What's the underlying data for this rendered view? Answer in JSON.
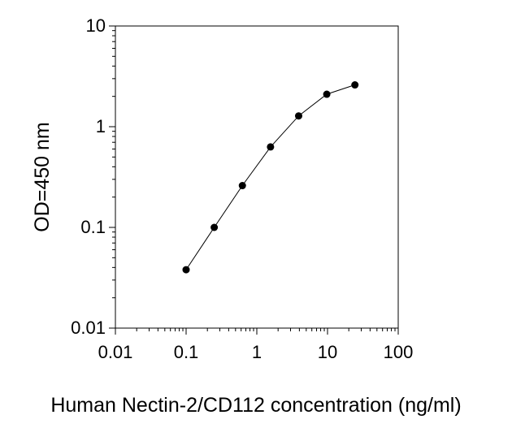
{
  "chart_data": {
    "type": "line",
    "title": "",
    "xlabel": "Human Nectin-2/CD112 concentration (ng/ml)",
    "ylabel": "OD=450 nm",
    "xscale": "log",
    "yscale": "log",
    "xlim": [
      0.01,
      100
    ],
    "ylim": [
      0.01,
      10
    ],
    "x_ticks": [
      0.01,
      0.1,
      1,
      10,
      100
    ],
    "x_tick_labels": [
      "0.01",
      "0.1",
      "1",
      "10",
      "100"
    ],
    "y_ticks": [
      0.01,
      0.1,
      1,
      10
    ],
    "y_tick_labels": [
      "0.01",
      "0.1",
      "1",
      "10"
    ],
    "grid": false,
    "legend": "none",
    "series": [
      {
        "name": "Human Nectin-2/CD112",
        "marker": "filled-circle",
        "x": [
          0.1,
          0.25,
          0.625,
          1.5625,
          3.90625,
          9.765625,
          24.4140625
        ],
        "values": [
          0.038,
          0.1,
          0.26,
          0.63,
          1.28,
          2.1,
          2.6
        ]
      }
    ],
    "colors": {
      "line": "#000000",
      "marker": "#000000",
      "axis": "#000000",
      "background": "#ffffff"
    }
  }
}
